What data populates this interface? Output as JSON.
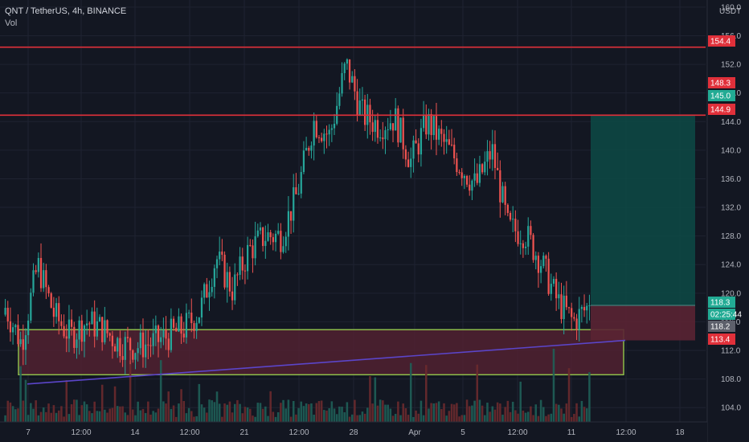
{
  "header": {
    "symbol_line": "QNT / TetherUS, 4h, BINANCE",
    "indicator": "Vol"
  },
  "axis": {
    "currency": "USDT",
    "y_ticks": [
      "104.0",
      "108.0",
      "112.0",
      "116.0",
      "120.0",
      "124.0",
      "128.0",
      "132.0",
      "136.0",
      "140.0",
      "144.0",
      "148.0",
      "152.0",
      "156.0",
      "160.0"
    ],
    "x_ticks": [
      "7",
      "12:00",
      "14",
      "12:00",
      "21",
      "12:00",
      "28",
      "Apr",
      "5",
      "12:00",
      "11",
      "12:00",
      "18"
    ]
  },
  "price_tags": [
    {
      "label": "154.4",
      "color": "#e0303a"
    },
    {
      "label": "148.3",
      "color": "#e0303a"
    },
    {
      "label": "145.0",
      "color": "#22ab94"
    },
    {
      "label": "144.9",
      "color": "#e0303a"
    },
    {
      "label": "118.3",
      "color": "#22ab94"
    },
    {
      "label": "02:25:44",
      "color": "#22ab94"
    },
    {
      "label": "118.2",
      "color": "#5d606b"
    },
    {
      "label": "113.4",
      "color": "#e0303a"
    }
  ],
  "colors": {
    "up": "#26a69a",
    "down": "#ef5350",
    "resistance": "#e0303a",
    "trendline": "#5b45c9",
    "support_zone_border": "#9bd34f",
    "target_zone": "#0d4a45",
    "stop_zone": "#5a2333"
  },
  "chart_data": {
    "type": "candlestick",
    "pair": "QNT / TetherUS",
    "timeframe": "4h",
    "exchange": "BINANCE",
    "y_range": [
      102.0,
      161.0
    ],
    "levels": {
      "resistance": [
        154.4,
        144.9
      ],
      "support_zone": [
        108.6,
        114.9
      ]
    },
    "position": {
      "entry": 118.3,
      "target": 144.9,
      "stop": 113.4
    },
    "trendline": {
      "from": {
        "x": "Mar 7",
        "price": 107.3
      },
      "to": {
        "x": "Apr 13",
        "price": 113.4
      }
    },
    "close_path": [
      [
        "Mar 7",
        118.0
      ],
      [
        "Mar 8",
        113.0
      ],
      [
        "Mar 9",
        124.0
      ],
      [
        "Mar 10",
        117.0
      ],
      [
        "Mar 11",
        114.0
      ],
      [
        "Mar 12",
        116.0
      ],
      [
        "Mar 13",
        115.0
      ],
      [
        "Mar 14",
        113.0
      ],
      [
        "Mar 15",
        112.5
      ],
      [
        "Mar 16",
        113.0
      ],
      [
        "Mar 17",
        114.0
      ],
      [
        "Mar 18",
        115.0
      ],
      [
        "Mar 19",
        117.5
      ],
      [
        "Mar 20",
        125.0
      ],
      [
        "Mar 21",
        120.5
      ],
      [
        "Mar 22",
        126.0
      ],
      [
        "Mar 23",
        128.0
      ],
      [
        "Mar 24",
        128.0
      ],
      [
        "Mar 25",
        134.0
      ],
      [
        "Mar 26",
        144.0
      ],
      [
        "Mar 27",
        142.0
      ],
      [
        "Mar 28",
        152.0
      ],
      [
        "Mar 29",
        145.0
      ],
      [
        "Mar 30",
        143.5
      ],
      [
        "Mar 31",
        144.5
      ],
      [
        "Apr 1",
        138.5
      ],
      [
        "Apr 2",
        144.0
      ],
      [
        "Apr 3",
        141.0
      ],
      [
        "Apr 4",
        138.0
      ],
      [
        "Apr 5",
        135.0
      ],
      [
        "Apr 6",
        140.0
      ],
      [
        "Apr 7",
        129.0
      ],
      [
        "Apr 8",
        128.5
      ],
      [
        "Apr 9",
        124.5
      ],
      [
        "Apr 10",
        119.0
      ],
      [
        "Apr 11",
        116.0
      ],
      [
        "Apr 11 12:00",
        118.3
      ]
    ]
  }
}
